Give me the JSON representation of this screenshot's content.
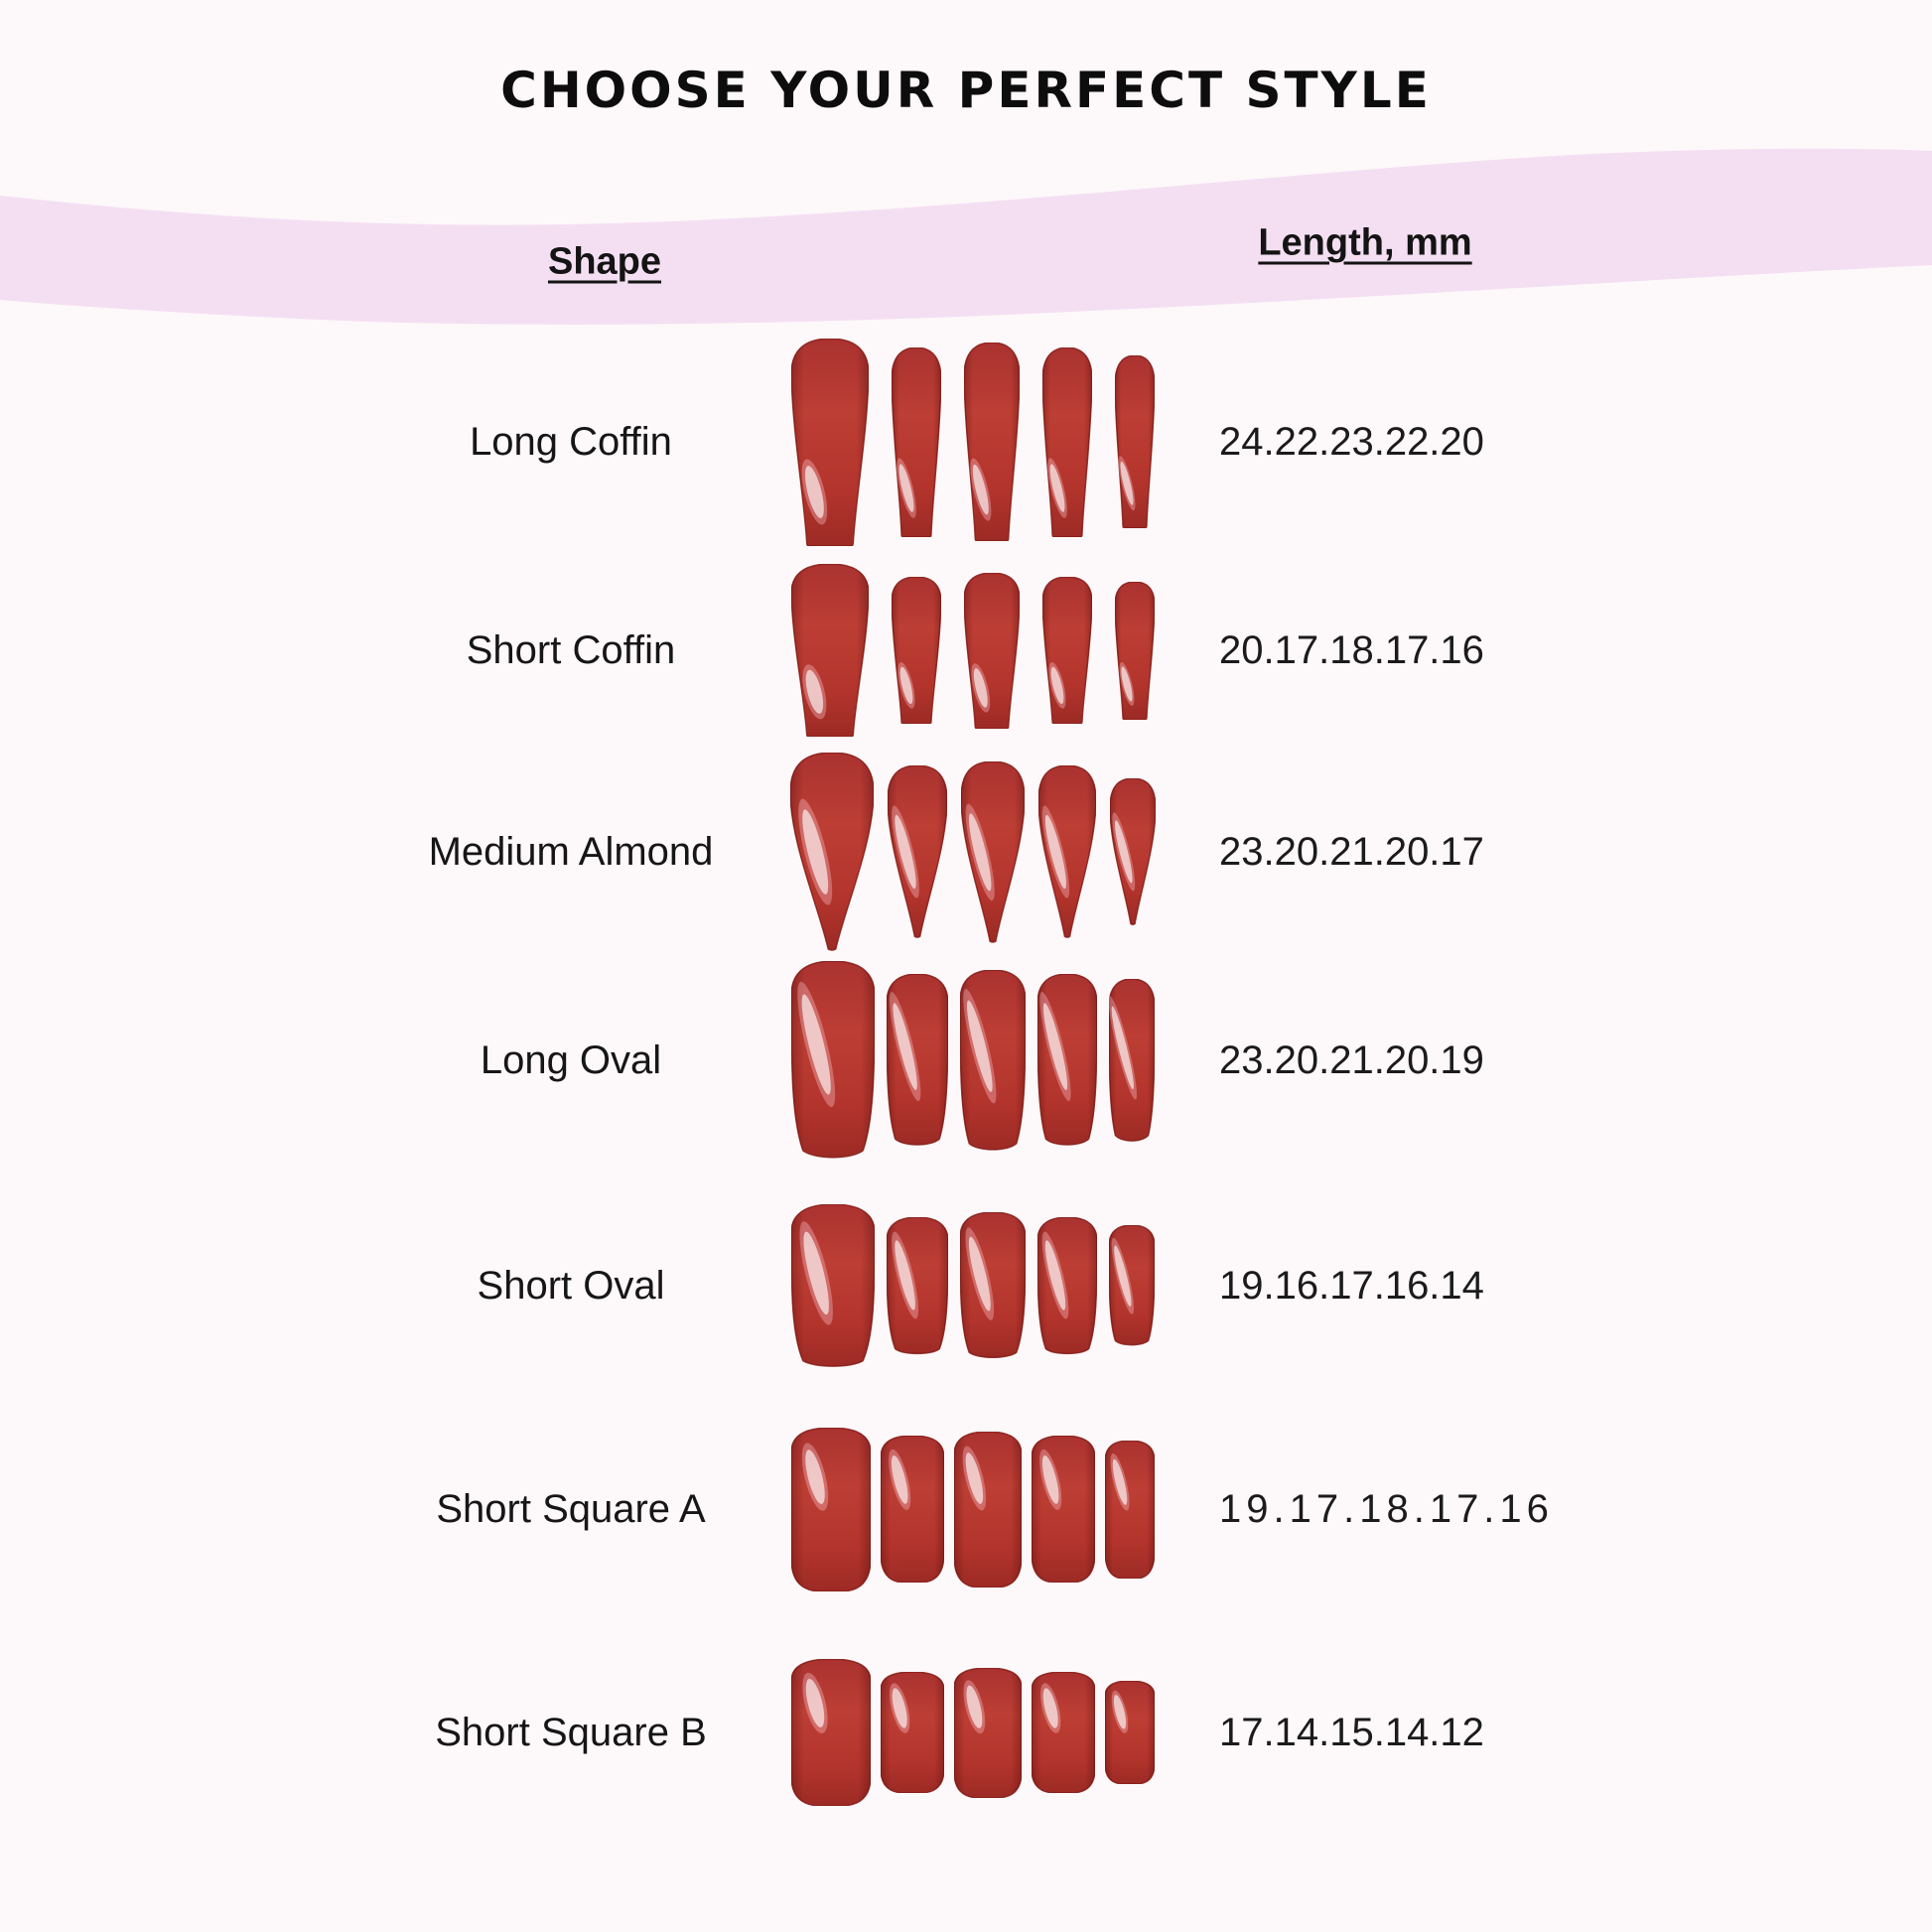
{
  "page": {
    "title": "CHOOSE YOUR PERFECT STYLE",
    "colors": {
      "background": "#fdf8fa",
      "band": "#f4dff2",
      "nail_red": "#b5362e",
      "text": "#161616"
    }
  },
  "table": {
    "headers": {
      "shape": "Shape",
      "length": "Length, mm"
    },
    "rows": [
      {
        "shape": "Long Coffin",
        "nail_shape": "coffin",
        "lengths_text": "24.22.23.22.20",
        "lengths_mm": [
          24,
          22,
          23,
          22,
          20
        ]
      },
      {
        "shape": "Short Coffin",
        "nail_shape": "coffin",
        "lengths_text": "20.17.18.17.16",
        "lengths_mm": [
          20,
          17,
          18,
          17,
          16
        ]
      },
      {
        "shape": "Medium Almond",
        "nail_shape": "almond",
        "lengths_text": "23.20.21.20.17",
        "lengths_mm": [
          23,
          20,
          21,
          20,
          17
        ]
      },
      {
        "shape": "Long Oval",
        "nail_shape": "oval",
        "lengths_text": "23.20.21.20.19",
        "lengths_mm": [
          23,
          20,
          21,
          20,
          19
        ]
      },
      {
        "shape": "Short Oval",
        "nail_shape": "oval",
        "lengths_text": "19.16.17.16.14",
        "lengths_mm": [
          19,
          16,
          17,
          16,
          14
        ]
      },
      {
        "shape": "Short Square A",
        "nail_shape": "square",
        "lengths_text": "19.17.18.17.16",
        "lengths_mm": [
          19,
          17,
          18,
          17,
          16
        ]
      },
      {
        "shape": "Short Square B",
        "nail_shape": "square",
        "lengths_text": "17.14.15.14.12",
        "lengths_mm": [
          17,
          14,
          15,
          14,
          12
        ]
      }
    ]
  }
}
